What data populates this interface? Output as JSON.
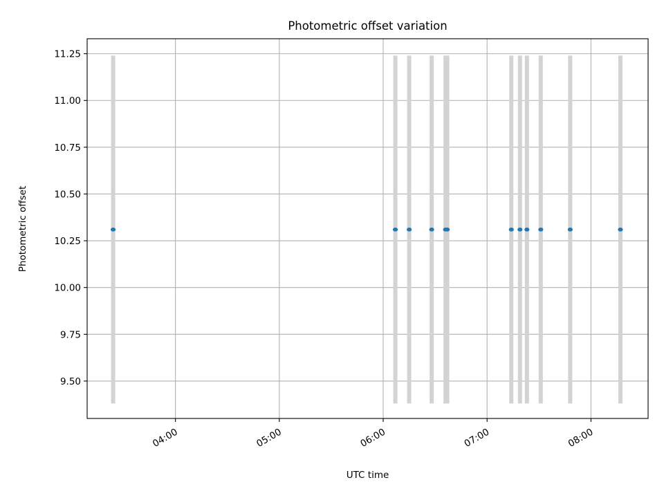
{
  "chart_data": {
    "type": "scatter",
    "title": "Photometric offset variation",
    "xlabel": "UTC time",
    "ylabel": "Photometric offset",
    "x_axis": {
      "kind": "time",
      "range": [
        "03:09",
        "08:33"
      ],
      "ticks": [
        "04:00",
        "05:00",
        "06:00",
        "07:00",
        "08:00"
      ],
      "tick_rotation_deg": 30
    },
    "y_axis": {
      "range": [
        9.3,
        11.33
      ],
      "ticks": [
        "9.50",
        "9.75",
        "10.00",
        "10.25",
        "10.50",
        "10.75",
        "11.00",
        "11.25"
      ]
    },
    "grid": true,
    "series": [
      {
        "marker_color": "#1f77b4",
        "errorbar_color": "#d3d3d3",
        "points": [
          {
            "x": "03:24",
            "y": 10.31,
            "ylow": 9.38,
            "yhigh": 11.24
          },
          {
            "x": "06:07",
            "y": 10.31,
            "ylow": 9.38,
            "yhigh": 11.24
          },
          {
            "x": "06:15",
            "y": 10.31,
            "ylow": 9.38,
            "yhigh": 11.24
          },
          {
            "x": "06:28",
            "y": 10.31,
            "ylow": 9.38,
            "yhigh": 11.24
          },
          {
            "x": "06:36",
            "y": 10.31,
            "ylow": 9.38,
            "yhigh": 11.24
          },
          {
            "x": "06:37",
            "y": 10.31,
            "ylow": 9.38,
            "yhigh": 11.24
          },
          {
            "x": "07:14",
            "y": 10.31,
            "ylow": 9.38,
            "yhigh": 11.24
          },
          {
            "x": "07:19",
            "y": 10.31,
            "ylow": 9.38,
            "yhigh": 11.24
          },
          {
            "x": "07:23",
            "y": 10.31,
            "ylow": 9.38,
            "yhigh": 11.24
          },
          {
            "x": "07:31",
            "y": 10.31,
            "ylow": 9.38,
            "yhigh": 11.24
          },
          {
            "x": "07:48",
            "y": 10.31,
            "ylow": 9.38,
            "yhigh": 11.24
          },
          {
            "x": "08:17",
            "y": 10.31,
            "ylow": 9.38,
            "yhigh": 11.24
          }
        ]
      }
    ]
  }
}
